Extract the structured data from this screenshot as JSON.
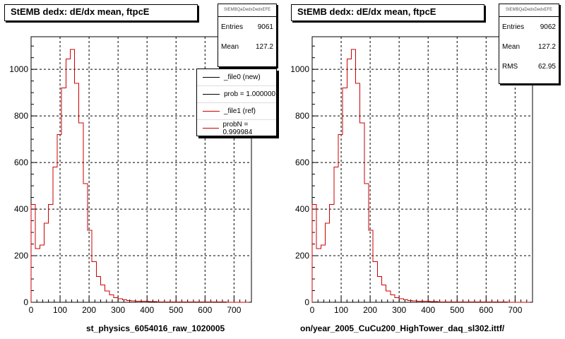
{
  "chart_data": [
    {
      "type": "histogram",
      "title": "StEMB dedx: dE/dx mean, ftpcE",
      "xlabel": "st_physics_6054016_raw_1020005",
      "xlim": [
        0,
        760
      ],
      "ylim": [
        0,
        1140
      ],
      "xticks": [
        0,
        100,
        200,
        300,
        400,
        500,
        600,
        700
      ],
      "yticks": [
        0,
        200,
        400,
        600,
        800,
        1000
      ],
      "grid": true,
      "bin_width": 15,
      "stats": {
        "name": "StEMBQaDedxDedxEFE",
        "entries": [
          {
            "label": "Entries",
            "value": "9061"
          },
          {
            "label": "Mean",
            "value": "127.2"
          }
        ]
      },
      "legend": {
        "placement": "top-right",
        "entries": [
          {
            "label": "_file0 (new)",
            "color": "#000000"
          },
          {
            "label": "prob = 1.000000",
            "color": "#000000"
          },
          {
            "label": "_file1 (ref)",
            "color": "#cc0000"
          },
          {
            "label": "probN = 0.999984",
            "color": "#cc0000"
          }
        ]
      },
      "series": [
        {
          "color": "#000000",
          "values": [
            420,
            230,
            245,
            340,
            420,
            580,
            720,
            920,
            1045,
            1085,
            940,
            770,
            510,
            310,
            175,
            110,
            75,
            48,
            32,
            20,
            15,
            10,
            8,
            6,
            5,
            4,
            4,
            3,
            3,
            2,
            2,
            2,
            2,
            2,
            2,
            1,
            1,
            1,
            1,
            1,
            1,
            1,
            1,
            1,
            1,
            0,
            0,
            0,
            0,
            0
          ]
        },
        {
          "color": "#cc0000",
          "values": [
            420,
            230,
            245,
            340,
            420,
            580,
            720,
            920,
            1045,
            1085,
            940,
            770,
            510,
            310,
            175,
            110,
            75,
            48,
            32,
            20,
            15,
            10,
            8,
            6,
            5,
            4,
            4,
            3,
            3,
            2,
            2,
            2,
            2,
            2,
            2,
            1,
            1,
            1,
            1,
            1,
            1,
            1,
            1,
            1,
            1,
            0,
            0,
            0,
            0,
            0
          ]
        }
      ]
    },
    {
      "type": "histogram",
      "title": "StEMB dedx: dE/dx mean, ftpcE",
      "xlabel": "on/year_2005_CuCu200_HighTower_daq_sl302.ittf/",
      "xlim": [
        0,
        760
      ],
      "ylim": [
        0,
        1140
      ],
      "xticks": [
        0,
        100,
        200,
        300,
        400,
        500,
        600,
        700
      ],
      "yticks": [
        0,
        200,
        400,
        600,
        800,
        1000
      ],
      "grid": true,
      "bin_width": 15,
      "stats": {
        "name": "StEMBQaDedxDedxEFE",
        "entries": [
          {
            "label": "Entries",
            "value": "9062"
          },
          {
            "label": "Mean",
            "value": "127.2"
          },
          {
            "label": "RMS",
            "value": "62.95"
          }
        ]
      },
      "series": [
        {
          "color": "#cc0000",
          "values": [
            420,
            230,
            245,
            340,
            420,
            580,
            720,
            920,
            1045,
            1085,
            940,
            770,
            510,
            310,
            175,
            110,
            75,
            48,
            32,
            20,
            15,
            10,
            8,
            6,
            5,
            4,
            4,
            3,
            3,
            2,
            2,
            2,
            2,
            2,
            2,
            1,
            1,
            1,
            1,
            1,
            1,
            1,
            1,
            1,
            1,
            0,
            0,
            0,
            0,
            0
          ]
        }
      ]
    }
  ]
}
